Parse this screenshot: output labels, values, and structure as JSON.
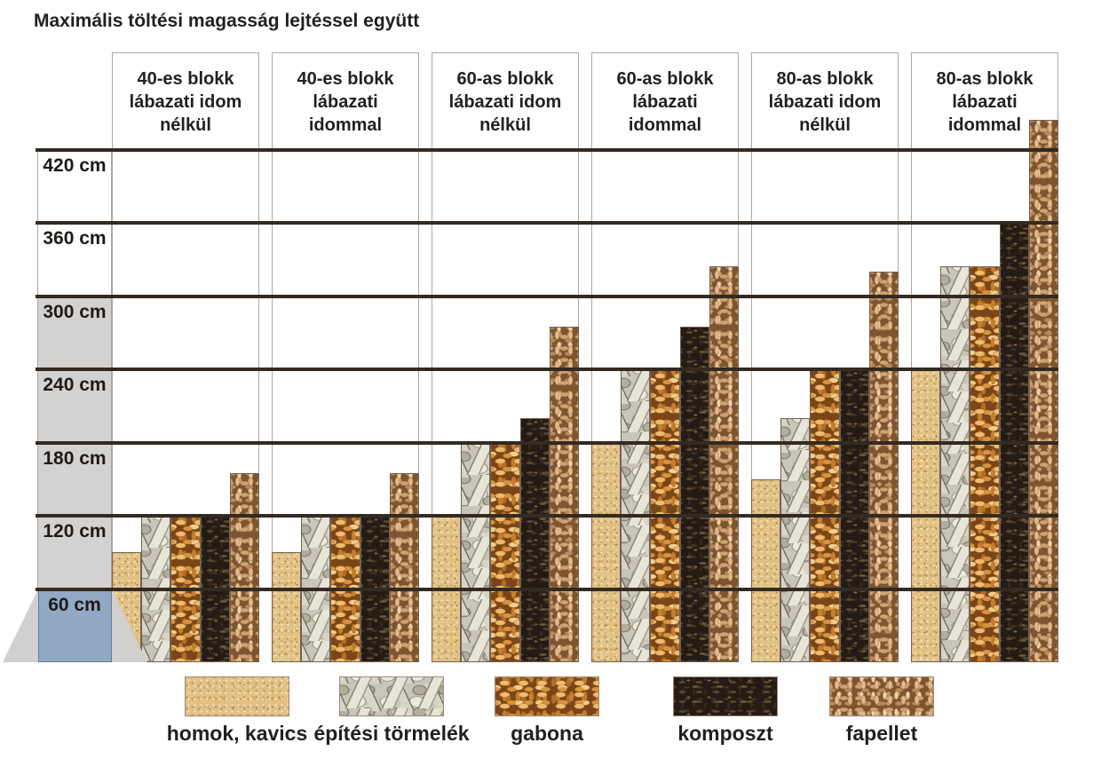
{
  "title": "Maximális töltési magasság lejtéssel együtt",
  "chart_data": {
    "type": "bar",
    "title": "Maximális töltési magasság lejtéssel együtt",
    "unit": "cm",
    "ylim": [
      0,
      450
    ],
    "grid": true,
    "legend_position": "bottom",
    "y_ticks": [
      {
        "value": 420,
        "label": "420 cm"
      },
      {
        "value": 360,
        "label": "360 cm"
      },
      {
        "value": 300,
        "label": "300 cm"
      },
      {
        "value": 240,
        "label": "240 cm"
      },
      {
        "value": 180,
        "label": "180 cm"
      },
      {
        "value": 120,
        "label": "120 cm"
      },
      {
        "value": 60,
        "label": "60 cm"
      }
    ],
    "groups": [
      {
        "label": "40-es blokk lábazati idom nélkül",
        "lines": [
          "40-es blokk",
          "lábazati idom",
          "nélkül"
        ]
      },
      {
        "label": "40-es blokk lábazati idommal",
        "lines": [
          "40-es blokk",
          "lábazati",
          "idommal"
        ]
      },
      {
        "label": "60-as blokk lábazati idom nélkül",
        "lines": [
          "60-as blokk",
          "lábazati idom",
          "nélkül"
        ]
      },
      {
        "label": "60-as blokk lábazati idommal",
        "lines": [
          "60-as blokk",
          "lábazati",
          "idommal"
        ]
      },
      {
        "label": "80-as blokk lábazati idom nélkül",
        "lines": [
          "80-as blokk",
          "lábazati idom",
          "nélkül"
        ]
      },
      {
        "label": "80-as blokk lábazati idommal",
        "lines": [
          "80-as blokk",
          "lábazati",
          "idommal"
        ]
      }
    ],
    "series": [
      {
        "name": "homok, kavics",
        "material": "sand",
        "values": [
          90,
          90,
          120,
          180,
          150,
          240
        ]
      },
      {
        "name": "építési törmelék",
        "material": "rubble",
        "values": [
          120,
          120,
          180,
          240,
          200,
          325
        ]
      },
      {
        "name": "gabona",
        "material": "grain",
        "values": [
          120,
          120,
          180,
          240,
          240,
          325
        ]
      },
      {
        "name": "komposzt",
        "material": "compost",
        "values": [
          120,
          120,
          200,
          275,
          240,
          360
        ]
      },
      {
        "name": "fapellet",
        "material": "pellet",
        "values": [
          155,
          155,
          275,
          325,
          320,
          445
        ]
      }
    ],
    "base_block": {
      "tick_label": "60 cm",
      "represents": "wall block with slope"
    }
  },
  "colors": {
    "gridline": "#332a21",
    "text": "#231f20",
    "label_cell_gray": "#d3d2d0",
    "wall_block_blue": "#91a9c5",
    "slope_gray": "#d1d0ce",
    "sand": "#e2c187",
    "rubble": "#c9c5b8",
    "grain": "#d79440",
    "compost": "#2a211a",
    "pellet": "#cfa271"
  }
}
